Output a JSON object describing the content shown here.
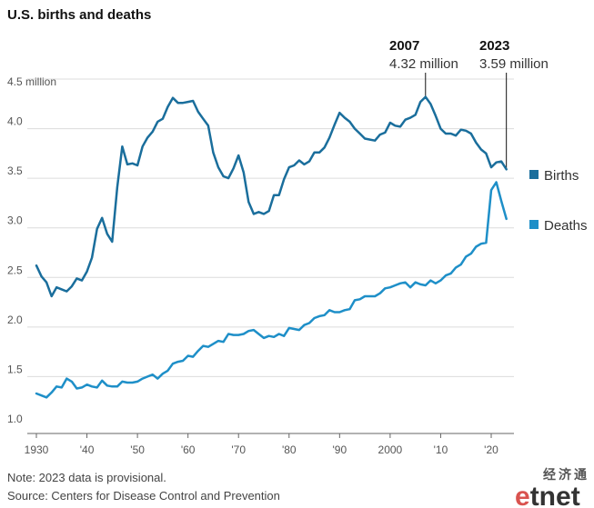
{
  "chart_data": {
    "type": "line",
    "title": "U.S. births and deaths",
    "y_unit_label": "4.5 million",
    "y_tick_labels": [
      "1.0",
      "1.5",
      "2.0",
      "2.5",
      "3.0",
      "3.5",
      "4.0"
    ],
    "y_ticks": [
      1.0,
      1.5,
      2.0,
      2.5,
      3.0,
      3.5,
      4.0,
      4.5
    ],
    "x_tick_labels": [
      "1930",
      "'40",
      "'50",
      "'60",
      "'70",
      "'80",
      "'90",
      "2000",
      "'10",
      "'20"
    ],
    "x_ticks": [
      1930,
      1940,
      1950,
      1960,
      1970,
      1980,
      1990,
      2000,
      2010,
      2020
    ],
    "ylim": [
      1.0,
      4.5
    ],
    "xlim": [
      1928,
      2024
    ],
    "grid": true,
    "legend_placement": "right",
    "x": [
      1930,
      1931,
      1932,
      1933,
      1934,
      1935,
      1936,
      1937,
      1938,
      1939,
      1940,
      1941,
      1942,
      1943,
      1944,
      1945,
      1946,
      1947,
      1948,
      1949,
      1950,
      1951,
      1952,
      1953,
      1954,
      1955,
      1956,
      1957,
      1958,
      1959,
      1960,
      1961,
      1962,
      1963,
      1964,
      1965,
      1966,
      1967,
      1968,
      1969,
      1970,
      1971,
      1972,
      1973,
      1974,
      1975,
      1976,
      1977,
      1978,
      1979,
      1980,
      1981,
      1982,
      1983,
      1984,
      1985,
      1986,
      1987,
      1988,
      1989,
      1990,
      1991,
      1992,
      1993,
      1994,
      1995,
      1996,
      1997,
      1998,
      1999,
      2000,
      2001,
      2002,
      2003,
      2004,
      2005,
      2006,
      2007,
      2008,
      2009,
      2010,
      2011,
      2012,
      2013,
      2014,
      2015,
      2016,
      2017,
      2018,
      2019,
      2020,
      2021,
      2022,
      2023
    ],
    "series": [
      {
        "name": "Births",
        "color": "#1a6e9c",
        "values": [
          2.62,
          2.51,
          2.45,
          2.31,
          2.4,
          2.38,
          2.36,
          2.41,
          2.49,
          2.47,
          2.56,
          2.7,
          2.99,
          3.1,
          2.94,
          2.86,
          3.41,
          3.82,
          3.64,
          3.65,
          3.63,
          3.82,
          3.91,
          3.97,
          4.07,
          4.1,
          4.22,
          4.31,
          4.26,
          4.26,
          4.27,
          4.28,
          4.17,
          4.1,
          4.03,
          3.76,
          3.61,
          3.52,
          3.5,
          3.6,
          3.73,
          3.56,
          3.26,
          3.14,
          3.16,
          3.14,
          3.17,
          3.33,
          3.33,
          3.49,
          3.61,
          3.63,
          3.68,
          3.64,
          3.67,
          3.76,
          3.76,
          3.81,
          3.91,
          4.04,
          4.16,
          4.11,
          4.07,
          4.0,
          3.95,
          3.9,
          3.89,
          3.88,
          3.94,
          3.96,
          4.06,
          4.03,
          4.02,
          4.09,
          4.11,
          4.14,
          4.27,
          4.32,
          4.25,
          4.13,
          4.0,
          3.95,
          3.95,
          3.93,
          3.99,
          3.98,
          3.95,
          3.86,
          3.79,
          3.75,
          3.61,
          3.66,
          3.67,
          3.59
        ]
      },
      {
        "name": "Deaths",
        "color": "#1e8fc8",
        "values": [
          1.33,
          1.31,
          1.29,
          1.34,
          1.4,
          1.39,
          1.48,
          1.45,
          1.38,
          1.39,
          1.42,
          1.4,
          1.39,
          1.46,
          1.41,
          1.4,
          1.4,
          1.45,
          1.44,
          1.44,
          1.45,
          1.48,
          1.5,
          1.52,
          1.48,
          1.53,
          1.56,
          1.63,
          1.65,
          1.66,
          1.71,
          1.7,
          1.76,
          1.81,
          1.8,
          1.83,
          1.86,
          1.85,
          1.93,
          1.92,
          1.92,
          1.93,
          1.96,
          1.97,
          1.93,
          1.89,
          1.91,
          1.9,
          1.93,
          1.91,
          1.99,
          1.98,
          1.97,
          2.02,
          2.04,
          2.09,
          2.11,
          2.12,
          2.17,
          2.15,
          2.15,
          2.17,
          2.18,
          2.27,
          2.28,
          2.31,
          2.31,
          2.31,
          2.34,
          2.39,
          2.4,
          2.42,
          2.44,
          2.45,
          2.4,
          2.45,
          2.43,
          2.42,
          2.47,
          2.44,
          2.47,
          2.52,
          2.54,
          2.6,
          2.63,
          2.71,
          2.74,
          2.81,
          2.84,
          2.85,
          3.38,
          3.46,
          3.27,
          3.09
        ]
      }
    ],
    "annotations": [
      {
        "year_label": "2007",
        "value_label": "4.32 million",
        "x": 2007,
        "y": 4.32
      },
      {
        "year_label": "2023",
        "value_label": "3.59 million",
        "x": 2023,
        "y": 3.59
      }
    ],
    "notes": [
      "Note: 2023 data is provisional.",
      "Source: Centers for Disease Control and Prevention"
    ]
  },
  "watermark": {
    "cn": "经济通",
    "latin_e": "e",
    "latin_rest": "tnet",
    "color_e": "#d9534f",
    "color_rest": "#333333"
  }
}
